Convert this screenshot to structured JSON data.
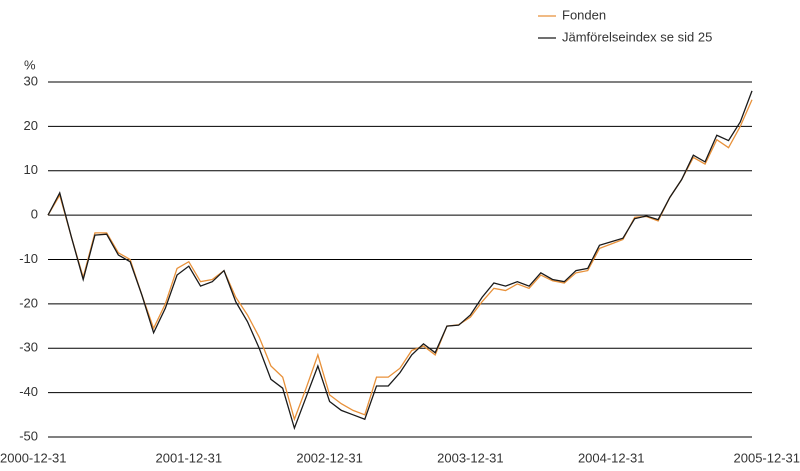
{
  "chart_data": {
    "type": "line",
    "y_unit": "%",
    "categories": [
      "2000-12-31",
      null,
      null,
      null,
      null,
      null,
      null,
      null,
      null,
      null,
      null,
      null,
      "2001-12-31",
      null,
      null,
      null,
      null,
      null,
      null,
      null,
      null,
      null,
      null,
      null,
      "2002-12-31",
      null,
      null,
      null,
      null,
      null,
      null,
      null,
      null,
      null,
      null,
      null,
      "2003-12-31",
      null,
      null,
      null,
      null,
      null,
      null,
      null,
      null,
      null,
      null,
      null,
      "2004-12-31",
      null,
      null,
      null,
      null,
      null,
      null,
      null,
      null,
      null,
      null,
      null,
      "2005-12-31"
    ],
    "series": [
      {
        "name": "Fonden",
        "color": "#e8913a",
        "values": [
          0,
          4.5,
          -5,
          -14,
          -4,
          -4,
          -8.5,
          -10,
          -18,
          -25.5,
          -20,
          -12,
          -10.5,
          -15,
          -14.5,
          -12.5,
          -18.5,
          -22.5,
          -27.5,
          -34,
          -36.5,
          -46,
          -39,
          -31.5,
          -40.5,
          -42.5,
          -44,
          -45,
          -36.5,
          -36.5,
          -34.5,
          -30.5,
          -29.5,
          -31.5,
          -25,
          -24.7,
          -23,
          -19.5,
          -16.5,
          -17,
          -15.5,
          -16.5,
          -13.5,
          -14.8,
          -15.3,
          -13,
          -12.5,
          -7.5,
          -6.5,
          -5.5,
          -0.5,
          -0.3,
          -1.3,
          4,
          8,
          13,
          11.5,
          17,
          15.2,
          20,
          26
        ]
      },
      {
        "name": "Jämförelseindex se sid 25",
        "color": "#1a1a1a",
        "values": [
          0,
          5,
          -5,
          -14.5,
          -4.5,
          -4.3,
          -9,
          -10.5,
          -18,
          -26.5,
          -21,
          -13.5,
          -11.5,
          -16,
          -15,
          -12.5,
          -19.5,
          -24,
          -30,
          -37,
          -39,
          -48,
          -41,
          -34,
          -42,
          -44,
          -45,
          -46,
          -38.5,
          -38.5,
          -35.5,
          -31.5,
          -29,
          -31,
          -25,
          -24.8,
          -22.5,
          -18.5,
          -15.3,
          -16,
          -15,
          -16,
          -13,
          -14.5,
          -15,
          -12.5,
          -12,
          -6.8,
          -6,
          -5.2,
          -0.8,
          -0.2,
          -1,
          4,
          8,
          13.5,
          12,
          18,
          16.8,
          21,
          28
        ]
      }
    ],
    "ylim": [
      -50,
      30
    ],
    "yticks": [
      -50,
      -40,
      -30,
      -20,
      -10,
      0,
      10,
      20,
      30
    ],
    "grid": true,
    "legend": "top-right"
  }
}
